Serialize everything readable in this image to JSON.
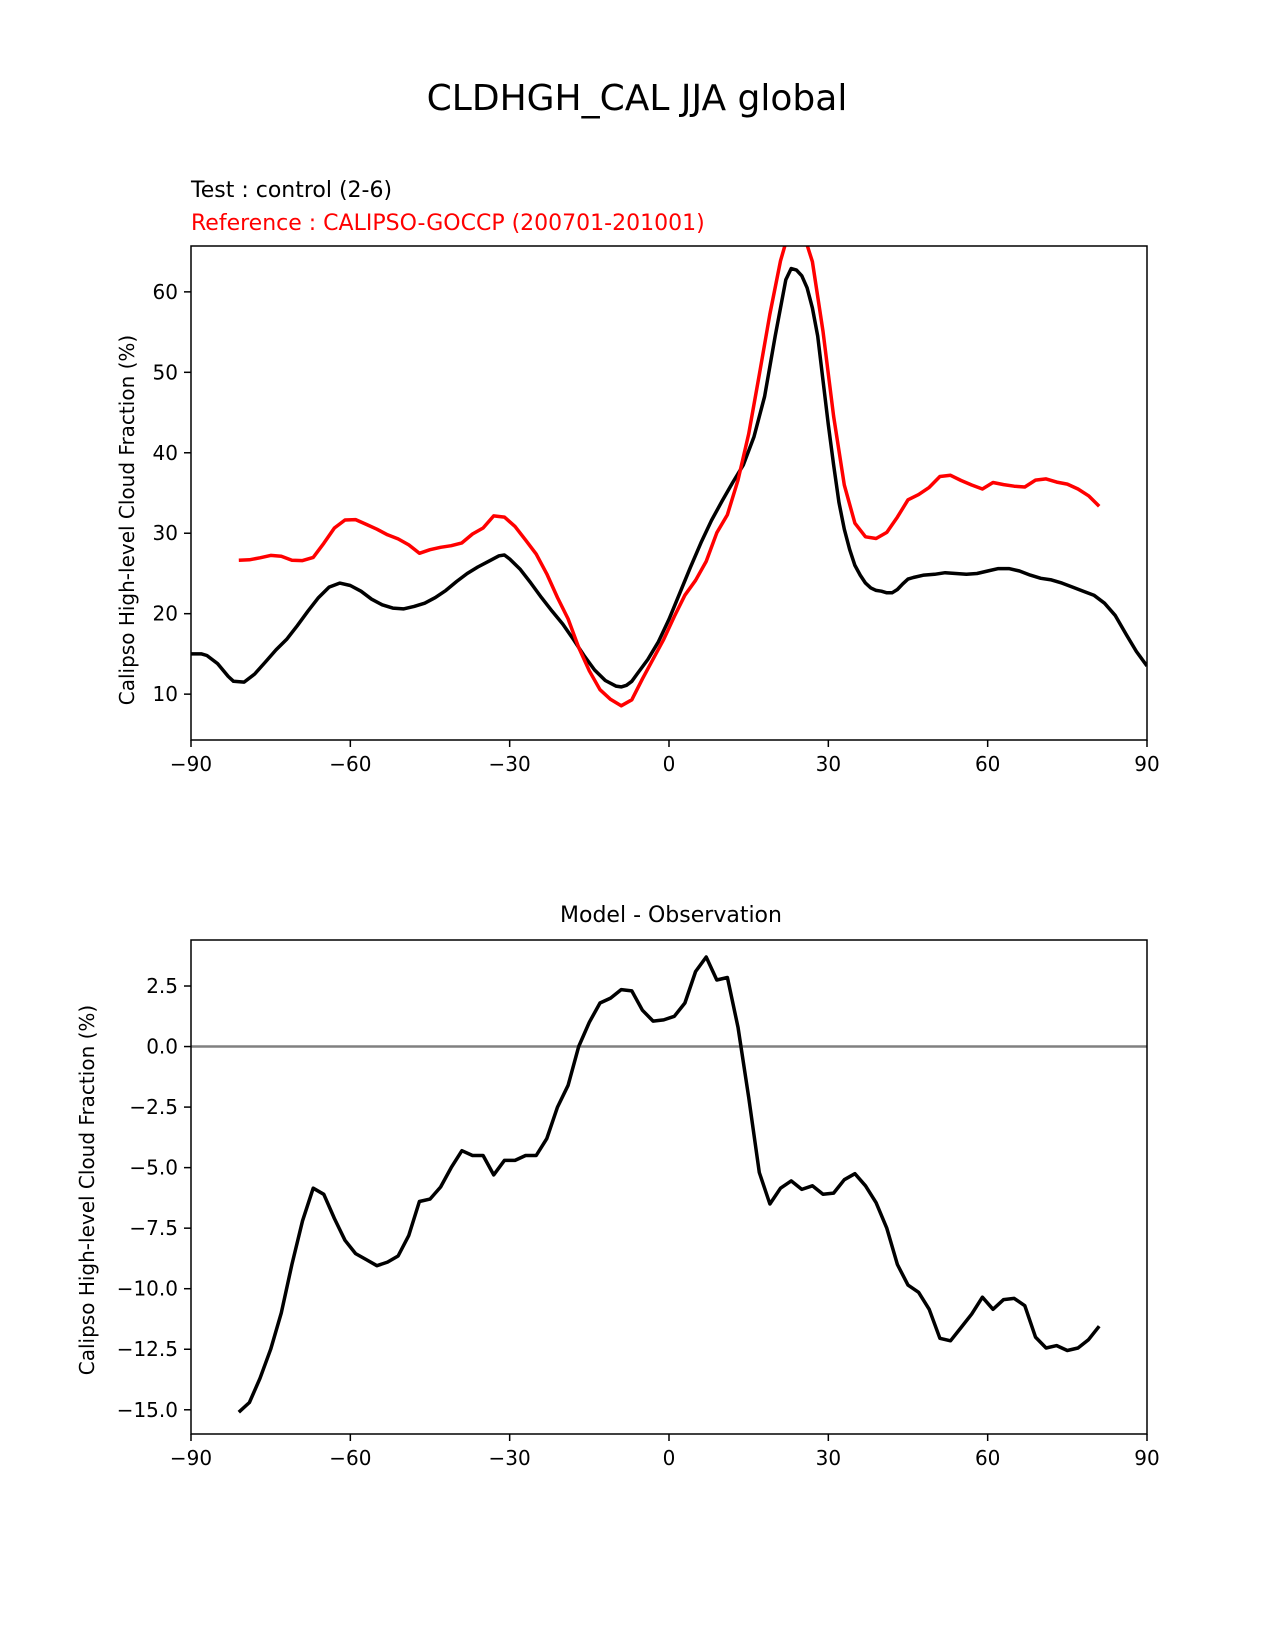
{
  "figure_title": "CLDHGH_CAL JJA global",
  "colors": {
    "test": "#000000",
    "reference": "#ff0000",
    "diff": "#000000",
    "zero_line": "#808080",
    "axes": "#000000"
  },
  "chart_data": [
    {
      "type": "line",
      "title_lines": [
        "Test : control (2-6)",
        "Reference : CALIPSO-GOCCP (200701-201001)"
      ],
      "xlabel": "",
      "ylabel": "Calipso High-level Cloud Fraction (%)",
      "xlim": [
        -90,
        90
      ],
      "ylim": [
        4.3,
        65.7
      ],
      "xticks": [
        -90,
        -60,
        -30,
        0,
        30,
        60,
        90
      ],
      "xtick_labels": [
        "−90",
        "−60",
        "−30",
        "0",
        "30",
        "60",
        "90"
      ],
      "yticks": [
        10,
        20,
        30,
        40,
        50,
        60
      ],
      "ytick_labels": [
        "10",
        "20",
        "30",
        "40",
        "50",
        "60"
      ],
      "grid": false,
      "series": [
        {
          "key": "test",
          "points": [
            [
              -90,
              15.0
            ],
            [
              -88,
              15.0
            ],
            [
              -87,
              14.8
            ],
            [
              -85,
              13.8
            ],
            [
              -83,
              12.2
            ],
            [
              -82,
              11.6
            ],
            [
              -80,
              11.5
            ],
            [
              -78,
              12.5
            ],
            [
              -76,
              14.0
            ],
            [
              -74,
              15.5
            ],
            [
              -72,
              16.8
            ],
            [
              -70,
              18.5
            ],
            [
              -68,
              20.3
            ],
            [
              -66,
              22.0
            ],
            [
              -64,
              23.3
            ],
            [
              -62,
              23.8
            ],
            [
              -60,
              23.5
            ],
            [
              -58,
              22.8
            ],
            [
              -56,
              21.8
            ],
            [
              -54,
              21.1
            ],
            [
              -52,
              20.7
            ],
            [
              -50,
              20.6
            ],
            [
              -48,
              20.9
            ],
            [
              -46,
              21.3
            ],
            [
              -44,
              22.0
            ],
            [
              -42,
              22.9
            ],
            [
              -40,
              24.0
            ],
            [
              -38,
              25.0
            ],
            [
              -36,
              25.8
            ],
            [
              -34,
              26.5
            ],
            [
              -32,
              27.2
            ],
            [
              -31,
              27.3
            ],
            [
              -30,
              26.8
            ],
            [
              -28,
              25.5
            ],
            [
              -26,
              23.8
            ],
            [
              -24,
              22.0
            ],
            [
              -22,
              20.3
            ],
            [
              -20,
              18.7
            ],
            [
              -18,
              16.8
            ],
            [
              -16,
              14.8
            ],
            [
              -14,
              13.0
            ],
            [
              -12,
              11.7
            ],
            [
              -10,
              11.0
            ],
            [
              -9,
              10.9
            ],
            [
              -8,
              11.1
            ],
            [
              -7,
              11.6
            ],
            [
              -6,
              12.5
            ],
            [
              -4,
              14.3
            ],
            [
              -2,
              16.5
            ],
            [
              0,
              19.3
            ],
            [
              2,
              22.5
            ],
            [
              4,
              25.7
            ],
            [
              6,
              28.8
            ],
            [
              8,
              31.6
            ],
            [
              10,
              34.0
            ],
            [
              12,
              36.3
            ],
            [
              14,
              38.5
            ],
            [
              16,
              42.0
            ],
            [
              18,
              47.0
            ],
            [
              20,
              54.5
            ],
            [
              22,
              61.5
            ],
            [
              23,
              62.9
            ],
            [
              24,
              62.7
            ],
            [
              25,
              62.0
            ],
            [
              26,
              60.5
            ],
            [
              27,
              58.0
            ],
            [
              28,
              54.5
            ],
            [
              29,
              49.0
            ],
            [
              30,
              43.5
            ],
            [
              31,
              38.5
            ],
            [
              32,
              33.8
            ],
            [
              33,
              30.5
            ],
            [
              34,
              28.0
            ],
            [
              35,
              26.0
            ],
            [
              36,
              24.8
            ],
            [
              37,
              23.8
            ],
            [
              38,
              23.2
            ],
            [
              39,
              22.9
            ],
            [
              40,
              22.8
            ],
            [
              41,
              22.6
            ],
            [
              42,
              22.6
            ],
            [
              43,
              23.0
            ],
            [
              44,
              23.7
            ],
            [
              45,
              24.3
            ],
            [
              46,
              24.5
            ],
            [
              48,
              24.8
            ],
            [
              50,
              24.9
            ],
            [
              52,
              25.1
            ],
            [
              54,
              25.0
            ],
            [
              56,
              24.9
            ],
            [
              58,
              25.0
            ],
            [
              60,
              25.3
            ],
            [
              62,
              25.6
            ],
            [
              64,
              25.6
            ],
            [
              66,
              25.3
            ],
            [
              68,
              24.8
            ],
            [
              70,
              24.4
            ],
            [
              72,
              24.2
            ],
            [
              74,
              23.8
            ],
            [
              76,
              23.3
            ],
            [
              78,
              22.8
            ],
            [
              80,
              22.3
            ],
            [
              82,
              21.3
            ],
            [
              84,
              19.8
            ],
            [
              86,
              17.5
            ],
            [
              88,
              15.3
            ],
            [
              90,
              13.5
            ]
          ]
        },
        {
          "key": "reference",
          "points": []
        }
      ]
    },
    {
      "type": "line",
      "title": "Model - Observation",
      "xlabel": "",
      "ylabel": "Calipso High-level Cloud Fraction (%)",
      "xlim": [
        -90,
        90
      ],
      "ylim": [
        -16.0,
        4.4
      ],
      "xticks": [
        -90,
        -60,
        -30,
        0,
        30,
        60,
        90
      ],
      "xtick_labels": [
        "−90",
        "−60",
        "−30",
        "0",
        "30",
        "60",
        "90"
      ],
      "yticks": [
        2.5,
        0.0,
        -2.5,
        -5.0,
        -7.5,
        -10.0,
        -12.5,
        -15.0
      ],
      "ytick_labels": [
        "2.5",
        "0.0",
        "−2.5",
        "−5.0",
        "−7.5",
        "−10.0",
        "−12.5",
        "−15.0"
      ],
      "grid": false,
      "zero_line": 0,
      "series": [
        {
          "key": "diff",
          "points": [
            [
              -81,
              -15.1
            ],
            [
              -79,
              -14.7
            ],
            [
              -77,
              -13.7
            ],
            [
              -75,
              -12.5
            ],
            [
              -73,
              -11.0
            ],
            [
              -71,
              -9.0
            ],
            [
              -69,
              -7.2
            ],
            [
              -67,
              -5.85
            ],
            [
              -65,
              -6.1
            ],
            [
              -63,
              -7.1
            ],
            [
              -61,
              -8.0
            ],
            [
              -59,
              -8.55
            ],
            [
              -57,
              -8.8
            ],
            [
              -55,
              -9.05
            ],
            [
              -53,
              -8.9
            ],
            [
              -51,
              -8.65
            ],
            [
              -49,
              -7.8
            ],
            [
              -47,
              -6.4
            ],
            [
              -45,
              -6.3
            ],
            [
              -43,
              -5.8
            ],
            [
              -41,
              -5.0
            ],
            [
              -39,
              -4.3
            ],
            [
              -37,
              -4.5
            ],
            [
              -35,
              -4.5
            ],
            [
              -33,
              -5.3
            ],
            [
              -31,
              -4.7
            ],
            [
              -29,
              -4.7
            ],
            [
              -27,
              -4.5
            ],
            [
              -25,
              -4.5
            ],
            [
              -23,
              -3.8
            ],
            [
              -21,
              -2.5
            ],
            [
              -19,
              -1.6
            ],
            [
              -17,
              0.0
            ],
            [
              -15,
              1.0
            ],
            [
              -13,
              1.8
            ],
            [
              -11,
              2.0
            ],
            [
              -9,
              2.35
            ],
            [
              -7,
              2.3
            ],
            [
              -5,
              1.5
            ],
            [
              -3,
              1.05
            ],
            [
              -1,
              1.1
            ],
            [
              1,
              1.25
            ],
            [
              3,
              1.8
            ],
            [
              5,
              3.1
            ],
            [
              7,
              3.7
            ],
            [
              9,
              2.75
            ],
            [
              11,
              2.85
            ],
            [
              13,
              0.8
            ],
            [
              15,
              -2.1
            ],
            [
              17,
              -5.2
            ],
            [
              19,
              -6.5
            ],
            [
              21,
              -5.85
            ],
            [
              23,
              -5.55
            ],
            [
              25,
              -5.9
            ],
            [
              27,
              -5.75
            ],
            [
              29,
              -6.1
            ],
            [
              31,
              -6.05
            ],
            [
              33,
              -5.5
            ],
            [
              35,
              -5.25
            ],
            [
              37,
              -5.75
            ],
            [
              39,
              -6.45
            ],
            [
              41,
              -7.5
            ],
            [
              43,
              -9.0
            ],
            [
              45,
              -9.85
            ],
            [
              47,
              -10.15
            ],
            [
              49,
              -10.85
            ],
            [
              51,
              -12.05
            ],
            [
              53,
              -12.15
            ],
            [
              55,
              -11.6
            ],
            [
              57,
              -11.05
            ],
            [
              59,
              -10.35
            ],
            [
              61,
              -10.85
            ],
            [
              63,
              -10.45
            ],
            [
              65,
              -10.4
            ],
            [
              67,
              -10.7
            ],
            [
              69,
              -12.0
            ],
            [
              71,
              -12.45
            ],
            [
              73,
              -12.35
            ],
            [
              75,
              -12.55
            ],
            [
              77,
              -12.45
            ],
            [
              79,
              -12.1
            ],
            [
              81,
              -11.55
            ]
          ]
        }
      ]
    }
  ]
}
